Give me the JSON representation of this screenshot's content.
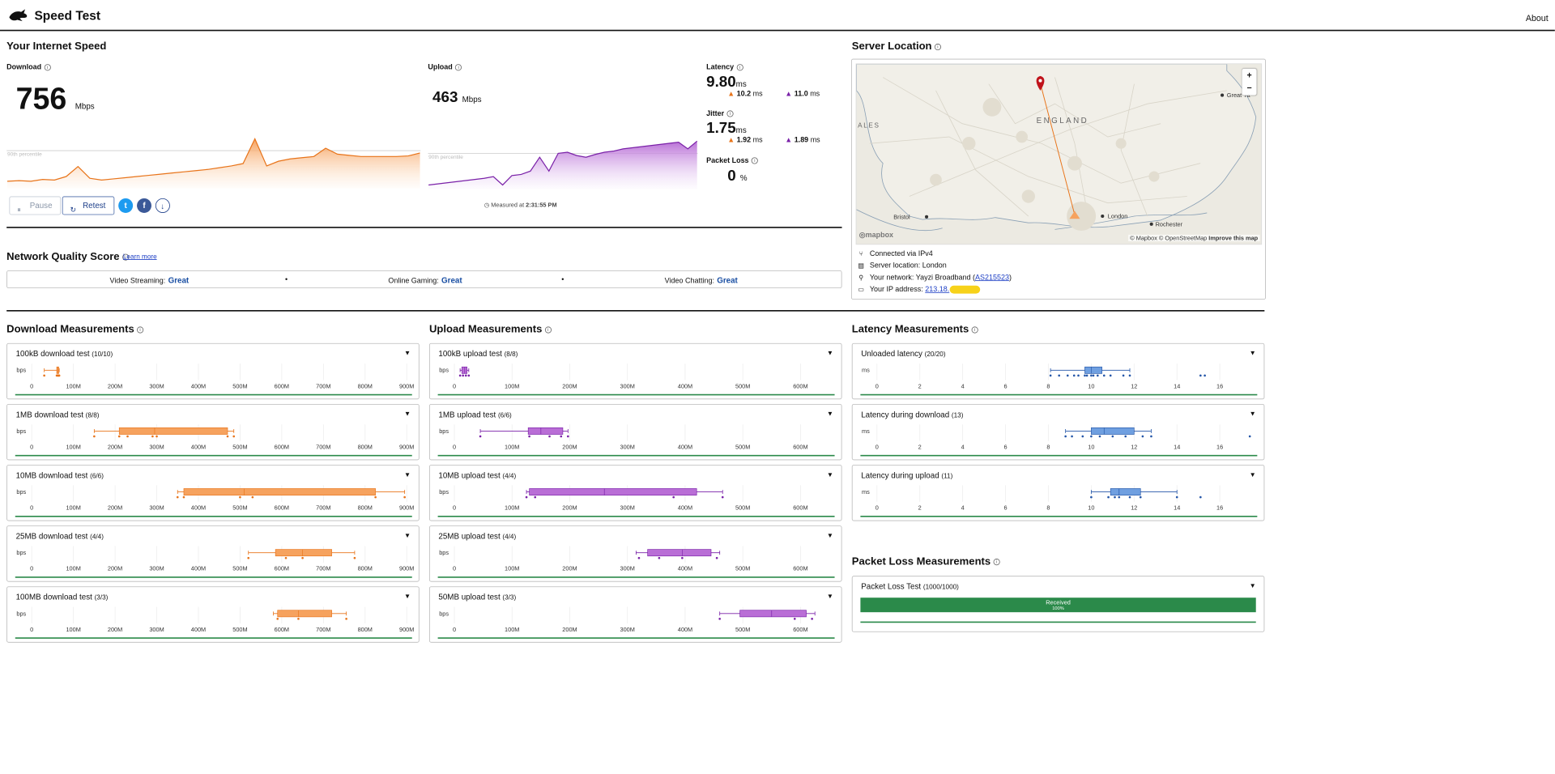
{
  "app": {
    "title": "Speed Test",
    "about": "About"
  },
  "speed": {
    "heading": "Your Internet Speed",
    "download_label": "Download",
    "download_value": "756",
    "download_unit": "Mbps",
    "upload_label": "Upload",
    "upload_value": "463",
    "upload_unit": "Mbps",
    "percentile_label": "90th percentile",
    "latency_label": "Latency",
    "latency_value": "9.80",
    "latency_unit": "ms",
    "latency_down": "10.2",
    "latency_up": "11.0",
    "jitter_label": "Jitter",
    "jitter_value": "1.75",
    "jitter_unit": "ms",
    "jitter_down": "1.92",
    "jitter_up": "1.89",
    "ms": "ms",
    "loss_label": "Packet Loss",
    "loss_value": "0",
    "loss_unit": "%",
    "pause": "Pause",
    "retest": "Retest",
    "measured_prefix": "Measured at",
    "measured_time": "2:31:55 PM"
  },
  "quality": {
    "heading": "Network Quality Score",
    "learn_more": "Learn more",
    "items": [
      {
        "label": "Video Streaming:",
        "value": "Great"
      },
      {
        "label": "Online Gaming:",
        "value": "Great"
      },
      {
        "label": "Video Chatting:",
        "value": "Great"
      }
    ]
  },
  "server": {
    "heading": "Server Location",
    "map_labels": {
      "england": "ENGLAND",
      "wales": "ALES",
      "bristol": "Bristol",
      "london": "London",
      "rochester": "Rochester",
      "great": "Great Ya"
    },
    "zoom_in": "+",
    "zoom_out": "−",
    "mapbox": "mapbox",
    "attribution": "© Mapbox © OpenStreetMap",
    "improve": "Improve this map",
    "connected": "Connected via IPv4",
    "location": "Server location: London",
    "network_prefix": "Your network: Yayzi Broadband (",
    "network_as": "AS215523",
    "network_suffix": ")",
    "ip_label": "Your IP address:",
    "ip_value": "213.18."
  },
  "download_section": {
    "heading": "Download Measurements"
  },
  "upload_section": {
    "heading": "Upload Measurements"
  },
  "latency_section": {
    "heading": "Latency Measurements"
  },
  "loss_section": {
    "heading": "Packet Loss Measurements",
    "card_title": "Packet Loss Test",
    "card_count": "(1000/1000)",
    "received": "Received",
    "received_pct": "100%",
    "received_fraction": 1.0
  },
  "axis_unit_bps": "bps",
  "axis_unit_ms": "ms",
  "download_ticks": [
    "0",
    "100M",
    "200M",
    "300M",
    "400M",
    "500M",
    "600M",
    "700M",
    "800M",
    "900M"
  ],
  "upload_ticks": [
    "0",
    "100M",
    "200M",
    "300M",
    "400M",
    "500M",
    "600M"
  ],
  "latency_ticks": [
    "0",
    "2",
    "4",
    "6",
    "8",
    "10",
    "12",
    "14",
    "16"
  ],
  "colors": {
    "download": "#f6a25e",
    "download_dark": "#e8741a",
    "upload": "#b96ed6",
    "upload_dark": "#7a21a8",
    "latency": "#6f9fe0",
    "latency_dark": "#2456a8",
    "good": "#2b8a4a",
    "pin": "#c0131b"
  },
  "chart_data": [
    {
      "type": "area",
      "name": "download-speed-trace",
      "xlabel": "",
      "ylabel": "",
      "y": [
        0.1,
        0.11,
        0.1,
        0.13,
        0.12,
        0.18,
        0.35,
        0.15,
        0.12,
        0.14,
        0.16,
        0.18,
        0.2,
        0.22,
        0.24,
        0.26,
        0.28,
        0.3,
        0.33,
        0.36,
        0.4,
        0.82,
        0.36,
        0.44,
        0.48,
        0.5,
        0.52,
        0.66,
        0.56,
        0.54,
        0.52,
        0.52,
        0.52,
        0.52,
        0.53,
        0.58
      ],
      "percentile_90": 0.62
    },
    {
      "type": "area",
      "name": "upload-speed-trace",
      "y": [
        0.05,
        0.07,
        0.09,
        0.11,
        0.13,
        0.15,
        0.17,
        0.2,
        0.05,
        0.22,
        0.24,
        0.3,
        0.55,
        0.3,
        0.62,
        0.64,
        0.58,
        0.55,
        0.6,
        0.64,
        0.66,
        0.7,
        0.72,
        0.74,
        0.76,
        0.78,
        0.8,
        0.82,
        0.7,
        0.84
      ],
      "percentile_90": 0.62
    },
    {
      "type": "boxplot",
      "name": "100kB download test",
      "count": "(10/10)",
      "xlim": [
        0,
        900
      ],
      "min": 30,
      "q1": 60,
      "median": 62,
      "q3": 64,
      "max": 66,
      "points": [
        30,
        60,
        62,
        63,
        64,
        65,
        66
      ]
    },
    {
      "type": "boxplot",
      "name": "1MB download test",
      "count": "(8/8)",
      "xlim": [
        0,
        900
      ],
      "min": 150,
      "q1": 210,
      "median": 295,
      "q3": 470,
      "max": 485,
      "points": [
        150,
        210,
        230,
        290,
        300,
        470,
        485
      ]
    },
    {
      "type": "boxplot",
      "name": "10MB download test",
      "count": "(6/6)",
      "xlim": [
        0,
        900
      ],
      "min": 350,
      "q1": 365,
      "median": 510,
      "q3": 825,
      "max": 895,
      "points": [
        350,
        365,
        500,
        530,
        825,
        895
      ]
    },
    {
      "type": "boxplot",
      "name": "25MB download test",
      "count": "(4/4)",
      "xlim": [
        0,
        900
      ],
      "min": 520,
      "q1": 585,
      "median": 650,
      "q3": 720,
      "max": 775,
      "points": [
        520,
        610,
        650,
        775
      ]
    },
    {
      "type": "boxplot",
      "name": "100MB download test",
      "count": "(3/3)",
      "xlim": [
        0,
        900
      ],
      "min": 580,
      "q1": 590,
      "median": 640,
      "q3": 720,
      "max": 755,
      "points": [
        590,
        640,
        755
      ]
    },
    {
      "type": "boxplot",
      "name": "100kB upload test",
      "count": "(8/8)",
      "xlim": [
        0,
        650
      ],
      "min": 10,
      "q1": 13,
      "median": 18,
      "q3": 22,
      "max": 25,
      "points": [
        10,
        15,
        20,
        25
      ]
    },
    {
      "type": "boxplot",
      "name": "1MB upload test",
      "count": "(6/6)",
      "xlim": [
        0,
        650
      ],
      "min": 45,
      "q1": 128,
      "median": 150,
      "q3": 188,
      "max": 197,
      "points": [
        45,
        130,
        165,
        185,
        197
      ]
    },
    {
      "type": "boxplot",
      "name": "10MB upload test",
      "count": "(4/4)",
      "xlim": [
        0,
        650
      ],
      "min": 125,
      "q1": 130,
      "median": 260,
      "q3": 420,
      "max": 465,
      "points": [
        125,
        140,
        380,
        465
      ]
    },
    {
      "type": "boxplot",
      "name": "25MB upload test",
      "count": "(4/4)",
      "xlim": [
        0,
        650
      ],
      "min": 315,
      "q1": 335,
      "median": 395,
      "q3": 445,
      "max": 460,
      "points": [
        320,
        355,
        395,
        455
      ]
    },
    {
      "type": "boxplot",
      "name": "50MB upload test",
      "count": "(3/3)",
      "xlim": [
        0,
        650
      ],
      "min": 460,
      "q1": 495,
      "median": 550,
      "q3": 610,
      "max": 625,
      "points": [
        460,
        590,
        620
      ]
    },
    {
      "type": "boxplot",
      "name": "Unloaded latency",
      "count": "(20/20)",
      "xlim": [
        0,
        17.5
      ],
      "min": 8.1,
      "q1": 9.7,
      "median": 10.0,
      "q3": 10.5,
      "max": 11.8,
      "points": [
        8.1,
        8.5,
        8.9,
        9.2,
        9.4,
        9.7,
        9.8,
        10.0,
        10.1,
        10.3,
        10.6,
        10.9,
        11.5,
        11.8,
        15.1,
        15.3
      ]
    },
    {
      "type": "boxplot",
      "name": "Latency during download",
      "count": "(13)",
      "xlim": [
        0,
        17.5
      ],
      "min": 8.8,
      "q1": 10.0,
      "median": 10.6,
      "q3": 12.0,
      "max": 12.8,
      "points": [
        8.8,
        9.1,
        9.6,
        10.0,
        10.4,
        11.0,
        11.6,
        12.4,
        12.8,
        17.4
      ]
    },
    {
      "type": "boxplot",
      "name": "Latency during upload",
      "count": "(11)",
      "xlim": [
        0,
        17.5
      ],
      "min": 10.0,
      "q1": 10.9,
      "median": 11.3,
      "q3": 12.3,
      "max": 14.0,
      "points": [
        10.0,
        10.8,
        11.1,
        11.3,
        11.8,
        12.3,
        14.0,
        15.1
      ]
    }
  ]
}
